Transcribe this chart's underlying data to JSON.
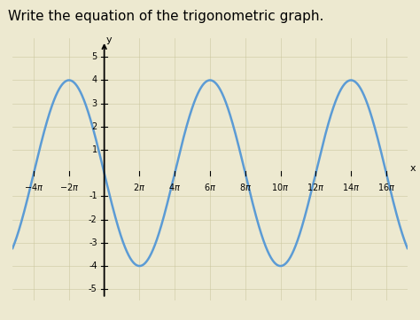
{
  "title": "Write the equation of the trigonometric graph.",
  "amplitude": 4,
  "period_factor": 0.25,
  "x_ticks_pi": [
    -4,
    -2,
    2,
    4,
    6,
    8,
    10,
    12,
    14,
    16
  ],
  "y_ticks": [
    -5,
    -4,
    -3,
    -2,
    -1,
    1,
    2,
    3,
    4,
    5
  ],
  "ylim": [
    -5.5,
    5.8
  ],
  "xlim_pi": [
    -5.2,
    17.2
  ],
  "curve_color": "#5b9bd5",
  "curve_lw": 1.8,
  "background_color": "#ede9d0",
  "title_fontsize": 11,
  "axis_label_fontsize": 8,
  "tick_fontsize": 7
}
